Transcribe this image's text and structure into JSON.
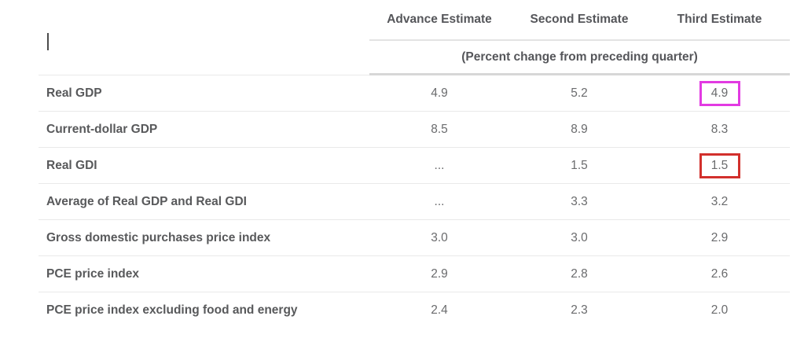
{
  "colors": {
    "magenta_highlight": "#e23ae2",
    "red_highlight": "#d2302c",
    "row_divider": "#e9e9e9",
    "thick_divider": "#d7d7d7",
    "header_text": "#55565a",
    "value_text": "#6a6b6d"
  },
  "header": {
    "corner_cell_text": "",
    "text_caret_visible": true
  },
  "chart_data": {
    "type": "table",
    "title": "",
    "columns": [
      "Advance Estimate",
      "Second Estimate",
      "Third Estimate"
    ],
    "units_note": "(Percent change from preceding quarter)",
    "rows": [
      {
        "label": "Real GDP",
        "values": [
          "4.9",
          "5.2",
          "4.9"
        ]
      },
      {
        "label": "Current-dollar GDP",
        "values": [
          "8.5",
          "8.9",
          "8.3"
        ]
      },
      {
        "label": "Real GDI",
        "values": [
          "...",
          "1.5",
          "1.5"
        ]
      },
      {
        "label": "Average of Real GDP and Real GDI",
        "values": [
          "...",
          "3.3",
          "3.2"
        ]
      },
      {
        "label": "Gross domestic purchases price index",
        "values": [
          "3.0",
          "3.0",
          "2.9"
        ]
      },
      {
        "label": "PCE price index",
        "values": [
          "2.9",
          "2.8",
          "2.6"
        ]
      },
      {
        "label": "PCE price index excluding food and energy",
        "values": [
          "2.4",
          "2.3",
          "2.0"
        ]
      }
    ],
    "highlights": [
      {
        "row_index": 0,
        "col_index": 2,
        "style": "magenta",
        "value": "4.9",
        "row": "Real GDP",
        "column": "Third Estimate"
      },
      {
        "row_index": 2,
        "col_index": 2,
        "style": "red",
        "value": "1.5",
        "row": "Real GDI",
        "column": "Third Estimate"
      }
    ],
    "layout": {
      "grid": "horizontal row dividers only",
      "last_row_border": false
    }
  }
}
